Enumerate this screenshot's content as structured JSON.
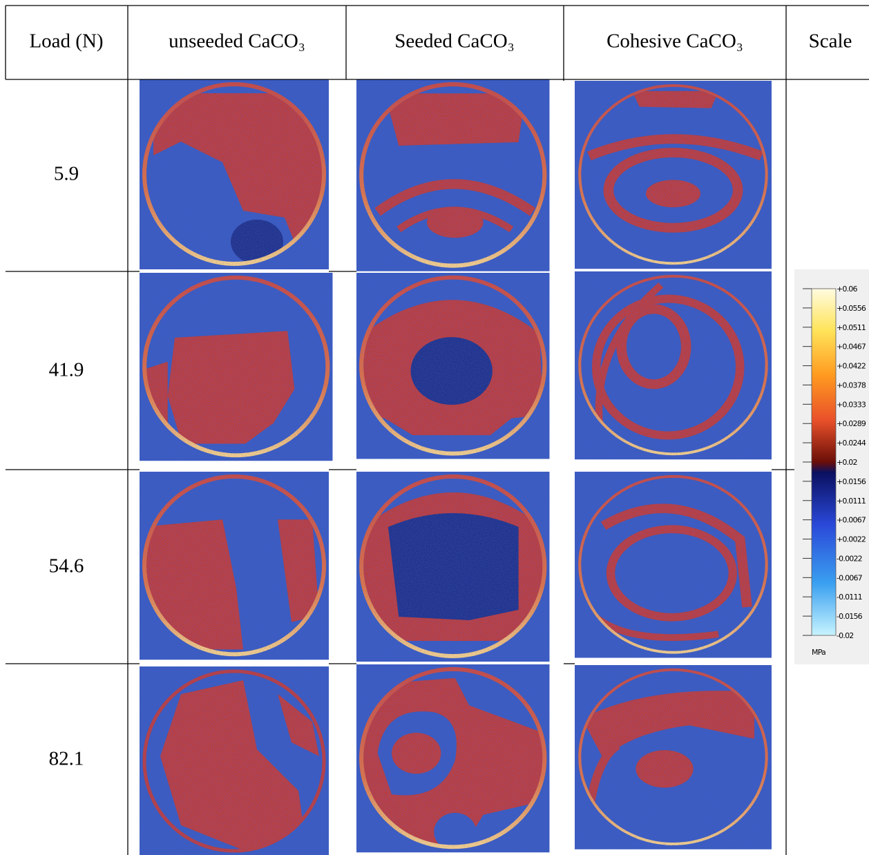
{
  "table": {
    "header": [
      "Load (N)",
      "unseeded CaCO₃",
      "Seeded CaCO₃",
      "Cohesive CaCO₃",
      "Scale"
    ],
    "rows": [
      "5.9",
      "41.9",
      "54.6",
      "82.1"
    ]
  },
  "scale": {
    "labels": [
      "+0.06",
      "+0.0556",
      "+0.0511",
      "+0.0467",
      "+0.0422",
      "+0.0378",
      "+0.0333",
      "+0.0289",
      "+0.0244",
      "+0.02",
      "+0.0156",
      "+0.0111",
      "+0.0067",
      "+0.0022",
      "-0.0022",
      "-0.0067",
      "-0.0111",
      "-0.0156",
      "-0.02"
    ],
    "unit": "MPa"
  }
}
